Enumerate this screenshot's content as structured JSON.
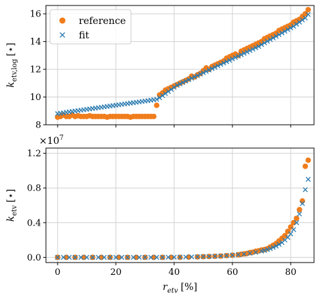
{
  "chart_data": [
    {
      "type": "scatter",
      "xlim": [
        -4,
        88
      ],
      "ylim": [
        8,
        16.6
      ],
      "xticks": [
        0,
        20,
        40,
        60,
        80
      ],
      "yticks": [
        8,
        10,
        12,
        14,
        16
      ],
      "ytick_labels": [
        "8",
        "10",
        "12",
        "14",
        "16"
      ],
      "ylabel": "k",
      "ylabel_sub": "etv,log",
      "ylabel_unit": "[⋆]",
      "grid": true,
      "legend": "top-left",
      "legend_entries": [
        "reference",
        "fit"
      ],
      "series": [
        {
          "name": "reference",
          "marker": "circle",
          "color": "#f07d1c",
          "x": [
            0,
            1,
            2,
            3,
            4,
            5,
            6,
            7,
            8,
            9,
            10,
            11,
            12,
            13,
            14,
            15,
            16,
            17,
            18,
            19,
            20,
            21,
            22,
            23,
            24,
            25,
            26,
            27,
            28,
            29,
            30,
            31,
            32,
            33,
            34,
            35,
            36,
            37,
            38,
            39,
            40,
            41,
            42,
            43,
            44,
            45,
            46,
            47,
            48,
            49,
            50,
            51,
            52,
            53,
            54,
            55,
            56,
            57,
            58,
            59,
            60,
            61,
            62,
            63,
            64,
            65,
            66,
            67,
            68,
            69,
            70,
            71,
            72,
            73,
            74,
            75,
            76,
            77,
            78,
            79,
            80,
            81,
            82,
            83,
            84,
            85,
            86
          ],
          "y": [
            8.55,
            8.6,
            8.7,
            8.6,
            8.6,
            8.7,
            8.6,
            8.65,
            8.6,
            8.6,
            8.6,
            8.65,
            8.6,
            8.6,
            8.6,
            8.6,
            8.6,
            8.55,
            8.6,
            8.6,
            8.6,
            8.6,
            8.6,
            8.6,
            8.6,
            8.55,
            8.6,
            8.6,
            8.6,
            8.6,
            8.6,
            8.6,
            8.6,
            8.6,
            9.4,
            10.15,
            10.3,
            10.5,
            10.6,
            10.7,
            10.8,
            10.9,
            11.0,
            11.1,
            11.2,
            11.3,
            11.5,
            11.45,
            11.6,
            11.7,
            11.9,
            12.1,
            12.0,
            12.2,
            12.3,
            12.4,
            12.5,
            12.6,
            12.8,
            12.9,
            13.0,
            13.1,
            13.0,
            13.3,
            13.4,
            13.5,
            13.6,
            13.7,
            13.8,
            13.9,
            14.0,
            14.2,
            14.3,
            14.4,
            14.5,
            14.6,
            14.8,
            14.9,
            15.0,
            15.1,
            15.2,
            15.4,
            15.5,
            15.6,
            15.8,
            16.0,
            16.3
          ]
        },
        {
          "name": "fit",
          "marker": "x",
          "color": "#2a7ab0",
          "x": [
            0,
            1,
            2,
            3,
            4,
            5,
            6,
            7,
            8,
            9,
            10,
            11,
            12,
            13,
            14,
            15,
            16,
            17,
            18,
            19,
            20,
            21,
            22,
            23,
            24,
            25,
            26,
            27,
            28,
            29,
            30,
            31,
            32,
            33,
            34,
            35,
            36,
            37,
            38,
            39,
            40,
            41,
            42,
            43,
            44,
            45,
            46,
            47,
            48,
            49,
            50,
            51,
            52,
            53,
            54,
            55,
            56,
            57,
            58,
            59,
            60,
            61,
            62,
            63,
            64,
            65,
            66,
            67,
            68,
            69,
            70,
            71,
            72,
            73,
            74,
            75,
            76,
            77,
            78,
            79,
            80,
            81,
            82,
            83,
            84,
            85,
            86
          ],
          "y": [
            8.8,
            8.83,
            8.86,
            8.9,
            8.93,
            8.96,
            8.99,
            9.02,
            9.05,
            9.08,
            9.11,
            9.14,
            9.17,
            9.2,
            9.23,
            9.26,
            9.29,
            9.32,
            9.35,
            9.38,
            9.41,
            9.44,
            9.47,
            9.5,
            9.53,
            9.56,
            9.59,
            9.62,
            9.65,
            9.68,
            9.71,
            9.74,
            9.77,
            9.8,
            9.83,
            9.95,
            10.1,
            10.25,
            10.4,
            10.55,
            10.7,
            10.85,
            10.95,
            11.05,
            11.15,
            11.25,
            11.35,
            11.45,
            11.55,
            11.65,
            11.75,
            11.85,
            11.95,
            12.05,
            12.15,
            12.25,
            12.35,
            12.45,
            12.55,
            12.65,
            12.75,
            12.85,
            12.95,
            13.05,
            13.15,
            13.25,
            13.35,
            13.45,
            13.55,
            13.65,
            13.78,
            13.9,
            14.02,
            14.14,
            14.26,
            14.38,
            14.5,
            14.62,
            14.74,
            14.86,
            14.98,
            15.1,
            15.25,
            15.4,
            15.55,
            15.7,
            15.95
          ]
        }
      ]
    },
    {
      "type": "scatter",
      "xlim": [
        -4,
        88
      ],
      "ylim": [
        -0.06,
        1.26
      ],
      "xticks": [
        0,
        20,
        40,
        60,
        80
      ],
      "yticks": [
        0.0,
        0.4,
        0.8,
        1.2
      ],
      "ytick_labels": [
        "0.0",
        "0.4",
        "0.8",
        "1.2"
      ],
      "scale_label": "×10",
      "scale_exponent": "7",
      "ylabel": "k",
      "ylabel_sub": "etv",
      "ylabel_unit": "[⋆]",
      "xlabel": "r",
      "xlabel_sub": "etv",
      "xlabel_unit": "[%]",
      "grid": true,
      "series": [
        {
          "name": "reference",
          "marker": "circle",
          "color": "#f07d1c",
          "x": [
            0,
            3,
            6,
            9,
            12,
            15,
            18,
            21,
            24,
            27,
            30,
            33,
            36,
            39,
            42,
            45,
            48,
            50,
            52,
            54,
            56,
            58,
            60,
            62,
            63,
            64,
            65,
            66,
            67,
            68,
            69,
            70,
            71,
            72,
            73,
            74,
            75,
            76,
            77,
            78,
            79,
            80,
            81,
            82,
            83,
            84,
            85,
            86
          ],
          "y": [
            0.0,
            0.0,
            0.0,
            0.0,
            0.0,
            0.0,
            0.0,
            0.0,
            0.0,
            0.0,
            0.0,
            0.0,
            0.0,
            0.0,
            0.0,
            0.003,
            0.005,
            0.008,
            0.01,
            0.012,
            0.015,
            0.02,
            0.025,
            0.03,
            0.035,
            0.04,
            0.045,
            0.055,
            0.06,
            0.07,
            0.075,
            0.085,
            0.09,
            0.1,
            0.12,
            0.14,
            0.16,
            0.19,
            0.22,
            0.25,
            0.3,
            0.35,
            0.4,
            0.45,
            0.55,
            0.65,
            1.05,
            1.12
          ]
        },
        {
          "name": "fit",
          "marker": "x",
          "color": "#2a7ab0",
          "x": [
            0,
            2,
            4,
            6,
            8,
            10,
            12,
            14,
            16,
            18,
            20,
            22,
            24,
            26,
            28,
            30,
            32,
            34,
            36,
            38,
            40,
            42,
            44,
            46,
            48,
            50,
            52,
            54,
            56,
            58,
            60,
            62,
            64,
            66,
            68,
            70,
            71,
            72,
            73,
            74,
            75,
            76,
            77,
            78,
            79,
            80,
            81,
            82,
            83,
            84,
            85,
            86
          ],
          "y": [
            0.0,
            0.0,
            0.0,
            0.0,
            0.0,
            0.0,
            0.0,
            0.0,
            0.0,
            0.0,
            0.0,
            0.0,
            0.0,
            0.0,
            0.0,
            0.0,
            0.0,
            0.0,
            0.0,
            0.001,
            0.002,
            0.003,
            0.004,
            0.005,
            0.006,
            0.008,
            0.01,
            0.013,
            0.016,
            0.02,
            0.025,
            0.031,
            0.038,
            0.047,
            0.058,
            0.072,
            0.08,
            0.09,
            0.1,
            0.115,
            0.13,
            0.15,
            0.17,
            0.2,
            0.23,
            0.27,
            0.32,
            0.4,
            0.5,
            0.62,
            0.78,
            0.9
          ]
        }
      ]
    }
  ]
}
